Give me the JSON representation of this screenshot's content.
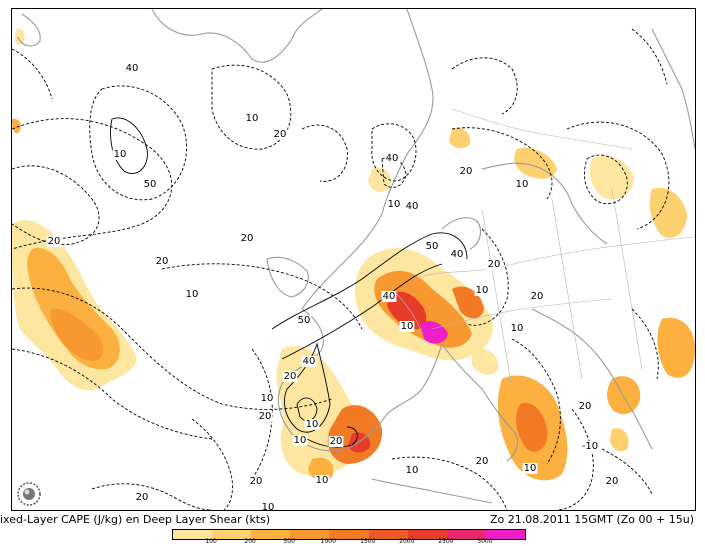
{
  "title": {
    "left": "ixed-Layer CAPE (J/kg) en Deep Layer Shear (kts)",
    "right": "Zo 21.08.2011  15GMT (Zo 00 + 15u)"
  },
  "legend": {
    "bins": [
      {
        "color": "#fde6a0"
      },
      {
        "color": "#fdd070"
      },
      {
        "color": "#fbb040"
      },
      {
        "color": "#f89830"
      },
      {
        "color": "#f27a25"
      },
      {
        "color": "#ec5a25"
      },
      {
        "color": "#e63c2a"
      },
      {
        "color": "#e8286e"
      },
      {
        "color": "#f01ec8"
      }
    ],
    "labels": [
      {
        "text": "100",
        "frac": 0.111
      },
      {
        "text": "200",
        "frac": 0.222
      },
      {
        "text": "500",
        "frac": 0.333
      },
      {
        "text": "1000",
        "frac": 0.444
      },
      {
        "text": "1500",
        "frac": 0.556
      },
      {
        "text": "2000",
        "frac": 0.667
      },
      {
        "text": "2500",
        "frac": 0.778
      },
      {
        "text": "3000",
        "frac": 0.889
      }
    ]
  },
  "contour_labels": [
    {
      "text": "10"
    },
    {
      "text": "20"
    },
    {
      "text": "40"
    },
    {
      "text": "50"
    },
    {
      "text": "10"
    },
    {
      "text": "20"
    },
    {
      "text": "40"
    },
    {
      "text": "10"
    },
    {
      "text": "20"
    },
    {
      "text": "10"
    },
    {
      "text": "40"
    },
    {
      "text": "50"
    },
    {
      "text": "40"
    },
    {
      "text": "20"
    },
    {
      "text": "10"
    },
    {
      "text": "20"
    },
    {
      "text": "10"
    },
    {
      "text": "40"
    },
    {
      "text": "10"
    },
    {
      "text": "20"
    },
    {
      "text": "10"
    },
    {
      "text": "20"
    },
    {
      "text": "50"
    },
    {
      "text": "40"
    },
    {
      "text": "20"
    },
    {
      "text": "10"
    },
    {
      "text": "20"
    },
    {
      "text": "10"
    },
    {
      "text": "20"
    },
    {
      "text": "10"
    },
    {
      "text": "10"
    },
    {
      "text": "20"
    },
    {
      "text": "10"
    },
    {
      "text": "20"
    },
    {
      "text": "-10"
    },
    {
      "text": "10"
    },
    {
      "text": "20"
    },
    {
      "text": "20"
    },
    {
      "text": "10"
    },
    {
      "text": "20"
    }
  ],
  "colors": {
    "shear_contour": "#000000",
    "coastline": "#9a9a9a",
    "border": "#b5b5b5"
  }
}
